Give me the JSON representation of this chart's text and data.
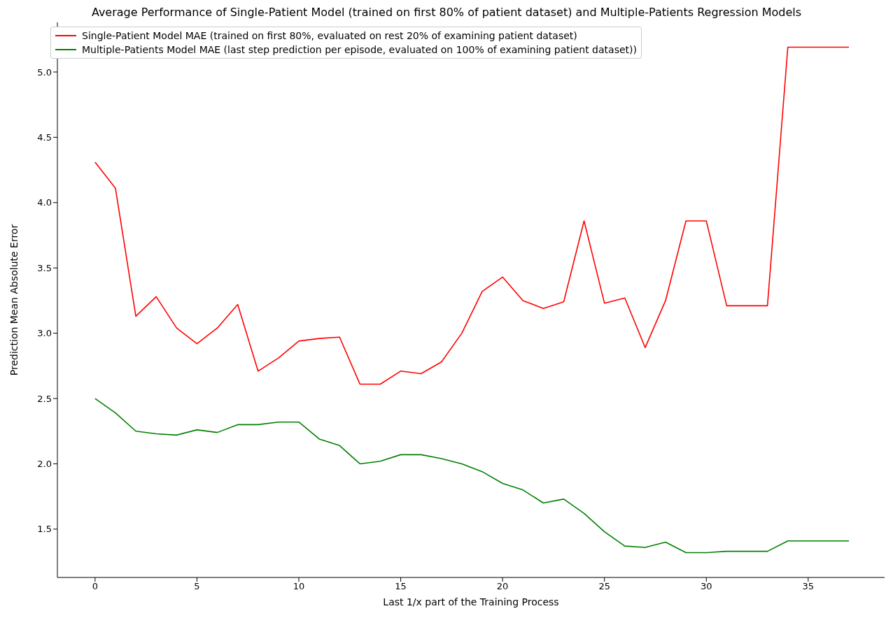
{
  "chart_data": {
    "type": "line",
    "title": "Average Performance of Single-Patient Model (trained on first 80% of patient dataset) and Multiple-Patients Regression Models",
    "xlabel": "Last 1/x part of the Training Process",
    "ylabel": "Prediction Mean Absolute Error",
    "x": [
      0,
      1,
      2,
      3,
      4,
      5,
      6,
      7,
      8,
      9,
      10,
      11,
      12,
      13,
      14,
      15,
      16,
      17,
      18,
      19,
      20,
      21,
      22,
      23,
      24,
      25,
      26,
      27,
      28,
      29,
      30,
      31,
      32,
      33,
      34,
      35,
      36,
      37
    ],
    "series": [
      {
        "name": "Single-Patient Model MAE (trained on first 80%, evaluated on rest 20% of examining patient dataset)",
        "color": "#ff0000",
        "values": [
          4.31,
          4.11,
          3.13,
          3.28,
          3.04,
          2.92,
          3.04,
          3.22,
          2.71,
          2.81,
          2.94,
          2.96,
          2.97,
          2.61,
          2.61,
          2.71,
          2.69,
          2.78,
          3.0,
          3.32,
          3.43,
          3.25,
          3.19,
          3.24,
          3.86,
          3.23,
          3.27,
          2.89,
          3.25,
          3.86,
          3.86,
          3.21,
          3.21,
          3.21,
          5.19,
          5.19,
          5.19,
          5.19
        ]
      },
      {
        "name": "Multiple-Patients Model MAE (last step prediction per episode, evaluated on 100% of examining patient dataset))",
        "color": "#008000",
        "values": [
          2.5,
          2.39,
          2.25,
          2.23,
          2.22,
          2.26,
          2.24,
          2.3,
          2.3,
          2.32,
          2.32,
          2.19,
          2.14,
          2.0,
          2.02,
          2.07,
          2.07,
          2.04,
          2.0,
          1.94,
          1.85,
          1.8,
          1.7,
          1.73,
          1.62,
          1.48,
          1.37,
          1.36,
          1.4,
          1.32,
          1.32,
          1.33,
          1.33,
          1.33,
          1.41,
          1.41,
          1.41,
          1.41
        ]
      }
    ],
    "xlim": [
      -1.85,
      38.75
    ],
    "xticks": [
      0,
      5,
      10,
      15,
      20,
      25,
      30,
      35
    ],
    "ylim": [
      1.13,
      5.38
    ],
    "yticks": [
      {
        "value": 1.5,
        "label": "1.5"
      },
      {
        "value": 2,
        "label": "2.0"
      },
      {
        "value": 2.5,
        "label": "2.5"
      },
      {
        "value": 3,
        "label": "3.0"
      },
      {
        "value": 3.5,
        "label": "3.5"
      },
      {
        "value": 4,
        "label": "4.0"
      },
      {
        "value": 4.5,
        "label": "4.5"
      },
      {
        "value": 5,
        "label": "5.0"
      }
    ],
    "grid": false,
    "legend": "top left",
    "marker": "none",
    "line_style": "solid"
  }
}
